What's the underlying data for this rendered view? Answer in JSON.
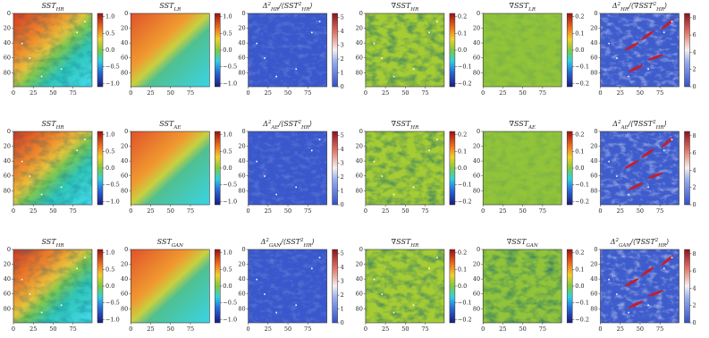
{
  "axes": {
    "xlim": [
      0,
      99
    ],
    "ylim": [
      0,
      99
    ],
    "xticks": [
      0,
      25,
      50,
      75
    ],
    "yticks": [
      0,
      20,
      40,
      60,
      80
    ]
  },
  "columns": [
    {
      "kind": "sst",
      "cbar": {
        "lim": [
          -1.1,
          1.1
        ],
        "ticks": [
          {
            "value": -1,
            "label": "−1.0"
          },
          {
            "value": -0.5,
            "label": "−0.5"
          },
          {
            "value": 0,
            "label": "0.0"
          },
          {
            "value": 0.5,
            "label": "0.5"
          },
          {
            "value": 1,
            "label": "1.0"
          }
        ]
      }
    },
    {
      "kind": "sst-smooth",
      "cbar": {
        "lim": [
          -1.1,
          1.1
        ],
        "ticks": [
          {
            "value": -1,
            "label": "−1.0"
          },
          {
            "value": -0.5,
            "label": "−0.5"
          },
          {
            "value": 0,
            "label": "0.0"
          },
          {
            "value": 0.5,
            "label": "0.5"
          },
          {
            "value": 1,
            "label": "1.0"
          }
        ]
      }
    },
    {
      "kind": "delta",
      "cbar": {
        "lim": [
          0,
          5.3
        ],
        "ticks": [
          0,
          1,
          2,
          3,
          4,
          5
        ]
      }
    },
    {
      "kind": "grad",
      "cbar": {
        "lim": [
          -0.22,
          0.22
        ],
        "ticks": [
          {
            "value": -0.2,
            "label": "−0.2"
          },
          {
            "value": -0.1,
            "label": "−0.1"
          },
          {
            "value": 0,
            "label": "0.0"
          },
          {
            "value": 0.1,
            "label": "0.1"
          },
          {
            "value": 0.2,
            "label": "0.2"
          }
        ]
      }
    },
    {
      "kind": "grad-smooth",
      "cbar": {
        "lim": [
          -0.22,
          0.22
        ],
        "ticks": [
          {
            "value": -0.2,
            "label": "−0.2"
          },
          {
            "value": -0.1,
            "label": "−0.1"
          },
          {
            "value": 0,
            "label": "0.0"
          },
          {
            "value": 0.1,
            "label": "0.1"
          },
          {
            "value": 0.2,
            "label": "0.2"
          }
        ]
      }
    },
    {
      "kind": "delta-grad",
      "cbar": {
        "lim": [
          0,
          8.5
        ],
        "ticks": [
          0,
          2,
          4,
          6,
          8
        ]
      }
    }
  ],
  "rows": [
    {
      "titles": [
        [
          {
            "t": "SST"
          },
          {
            "t": "HR",
            "sub": true
          }
        ],
        [
          {
            "t": "SST"
          },
          {
            "t": "LR",
            "sub": true
          }
        ],
        [
          {
            "t": "Δ"
          },
          {
            "t": "2",
            "sup": true
          },
          {
            "t": "HR",
            "sub": true
          },
          {
            "t": "/⟨SST"
          },
          {
            "t": "2",
            "sup": true
          },
          {
            "t": "HR",
            "sub": true
          },
          {
            "t": "⟩"
          }
        ],
        [
          {
            "t": "∇SST"
          },
          {
            "t": "HR",
            "sub": true
          }
        ],
        [
          {
            "t": "∇SST"
          },
          {
            "t": "LR",
            "sub": true
          }
        ],
        [
          {
            "t": "Δ"
          },
          {
            "t": "2",
            "sup": true
          },
          {
            "t": "HR",
            "sub": true
          },
          {
            "t": "/⟨∇SST"
          },
          {
            "t": "2",
            "sup": true
          },
          {
            "t": "HR",
            "sub": true
          },
          {
            "t": "⟩"
          }
        ]
      ]
    },
    {
      "titles": [
        [
          {
            "t": "SST"
          },
          {
            "t": "HR",
            "sub": true
          }
        ],
        [
          {
            "t": "SST"
          },
          {
            "t": "AE",
            "sub": true
          }
        ],
        [
          {
            "t": "Δ"
          },
          {
            "t": "2",
            "sup": true
          },
          {
            "t": "AE",
            "sub": true
          },
          {
            "t": "/⟨SST"
          },
          {
            "t": "2",
            "sup": true
          },
          {
            "t": "HR",
            "sub": true
          },
          {
            "t": "⟩"
          }
        ],
        [
          {
            "t": "∇SST"
          },
          {
            "t": "HR",
            "sub": true
          }
        ],
        [
          {
            "t": "∇SST"
          },
          {
            "t": "AE",
            "sub": true
          }
        ],
        [
          {
            "t": "Δ"
          },
          {
            "t": "2",
            "sup": true
          },
          {
            "t": "AE",
            "sub": true
          },
          {
            "t": "/⟨∇SST"
          },
          {
            "t": "2",
            "sup": true
          },
          {
            "t": "HR",
            "sub": true
          },
          {
            "t": "⟩"
          }
        ]
      ]
    },
    {
      "titles": [
        [
          {
            "t": "SST"
          },
          {
            "t": "HR",
            "sub": true
          }
        ],
        [
          {
            "t": "SST"
          },
          {
            "t": "GAN",
            "sub": true
          }
        ],
        [
          {
            "t": "Δ"
          },
          {
            "t": "2",
            "sup": true
          },
          {
            "t": "GAN",
            "sub": true
          },
          {
            "t": "/⟨SST"
          },
          {
            "t": "2",
            "sup": true
          },
          {
            "t": "HR",
            "sub": true
          },
          {
            "t": "⟩"
          }
        ],
        [
          {
            "t": "∇SST"
          },
          {
            "t": "HR",
            "sub": true
          }
        ],
        [
          {
            "t": "∇SST"
          },
          {
            "t": "GAN",
            "sub": true
          }
        ],
        [
          {
            "t": "Δ"
          },
          {
            "t": "2",
            "sup": true
          },
          {
            "t": "GAN",
            "sub": true
          },
          {
            "t": "/⟨∇SST"
          },
          {
            "t": "2",
            "sup": true
          },
          {
            "t": "HR",
            "sub": true
          },
          {
            "t": "⟩"
          }
        ]
      ]
    }
  ]
}
